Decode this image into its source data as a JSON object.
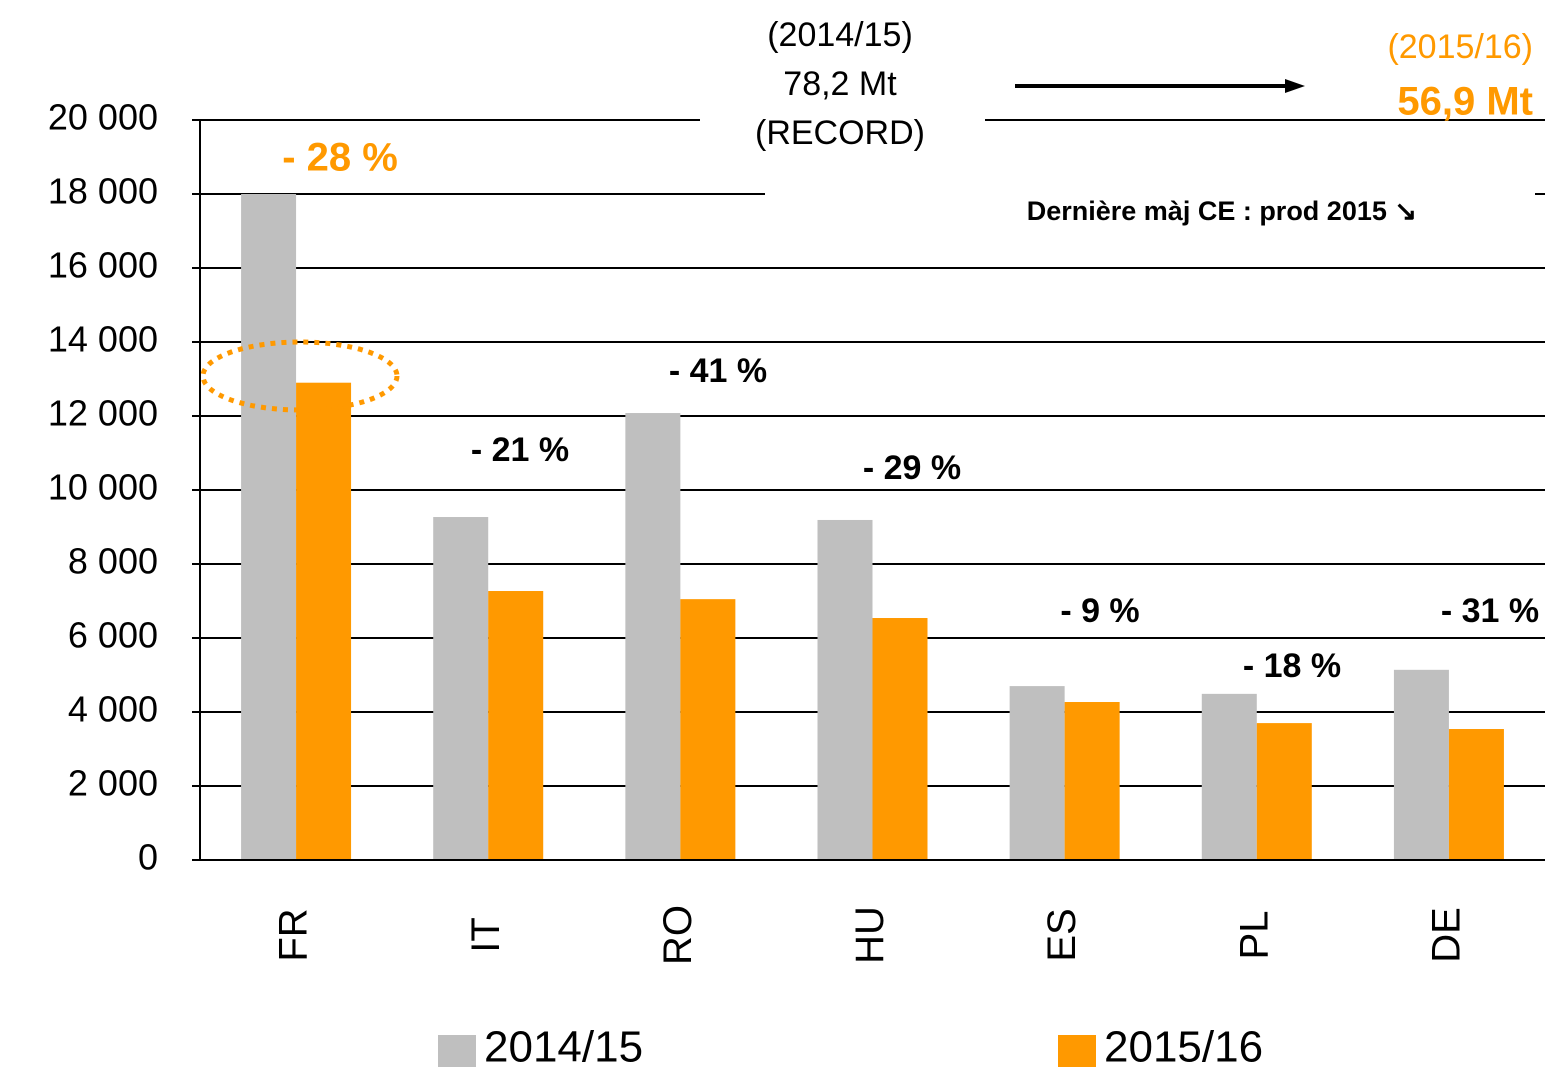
{
  "chart_data": {
    "type": "bar",
    "categories": [
      "FR",
      "IT",
      "RO",
      "HU",
      "ES",
      "PL",
      "DE"
    ],
    "series": [
      {
        "name": "2014/15",
        "color": "#bfbfbf",
        "values": [
          18000,
          9270,
          12080,
          9190,
          4700,
          4490,
          5140
        ]
      },
      {
        "name": "2015/16",
        "color": "#ff9900",
        "values": [
          12900,
          7270,
          7050,
          6540,
          4270,
          3700,
          3540
        ]
      }
    ],
    "change_labels": [
      "- 28 %",
      "- 21 %",
      "- 41 %",
      "- 29 %",
      "- 9 %",
      "- 18 %",
      "- 31 %"
    ],
    "header_left": [
      "(2014/15)",
      "78,2 Mt",
      "(RECORD)"
    ],
    "header_right": [
      "(2015/16)",
      "56,9 Mt"
    ],
    "note": "Dernière màj CE : prod 2015 ↘",
    "ylim": [
      0,
      20000
    ],
    "yticks": [
      0,
      {
        "value": 2000,
        "label": "2 000"
      },
      {
        "value": 4000,
        "label": "4 000"
      },
      {
        "value": 6000,
        "label": "6 000"
      },
      {
        "value": 8000,
        "label": "8 000"
      },
      {
        "value": 10000,
        "label": "10 000"
      },
      {
        "value": 12000,
        "label": "12 000"
      },
      {
        "value": 14000,
        "label": "14 000"
      },
      {
        "value": 16000,
        "label": "16 000"
      },
      {
        "value": 18000,
        "label": "18 000"
      },
      {
        "value": 20000,
        "label": "20 000"
      }
    ],
    "grid": true,
    "legend": "bottom"
  }
}
